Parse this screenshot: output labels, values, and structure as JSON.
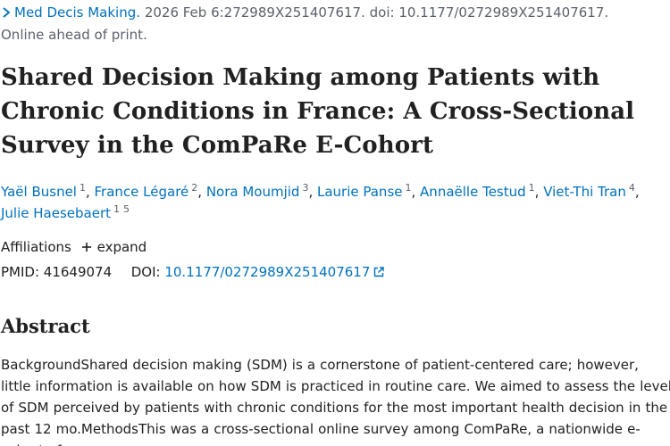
{
  "citation": {
    "journal": "Med Decis Making.",
    "details": "2026 Feb 6:272989X251407617. doi: 10.1177/0272989X251407617.",
    "status": "Online ahead of print."
  },
  "title": "Shared Decision Making among Patients with Chronic Conditions in France: A Cross-Sectional Survey in the ComPaRe E-Cohort",
  "authors": [
    {
      "name": "Yaël Busnel",
      "affiliations": [
        "1"
      ]
    },
    {
      "name": "France Légaré",
      "affiliations": [
        "2"
      ]
    },
    {
      "name": "Nora Moumjid",
      "affiliations": [
        "3"
      ]
    },
    {
      "name": "Laurie Panse",
      "affiliations": [
        "1"
      ]
    },
    {
      "name": "Annaëlle Testud",
      "affiliations": [
        "1"
      ]
    },
    {
      "name": "Viet-Thi Tran",
      "affiliations": [
        "4"
      ]
    },
    {
      "name": "Julie Haesebaert",
      "affiliations": [
        "1",
        "5"
      ]
    }
  ],
  "affiliations": {
    "label": "Affiliations",
    "expand_label": "expand"
  },
  "identifiers": {
    "pmid_label": "PMID:",
    "pmid": "41649074",
    "doi_label": "DOI:",
    "doi": "10.1177/0272989X251407617"
  },
  "abstract": {
    "heading": "Abstract",
    "text": "BackgroundShared decision making (SDM) is a cornerstone of patient-centered care; however, little information is available on how SDM is practiced in routine care. We aimed to assess the level of SDM perceived by patients with chronic conditions for the most important health decision in the past 12 mo.MethodsThis was a cross-sectional online survey among ComPaRe, a nationwide e-cohort of"
  },
  "colors": {
    "link": "#0071bc",
    "text": "#212121",
    "muted": "#5b616b"
  },
  "icons": {
    "journal": "chevron-right-icon",
    "expand": "plus-icon",
    "doi": "external-link-icon"
  }
}
